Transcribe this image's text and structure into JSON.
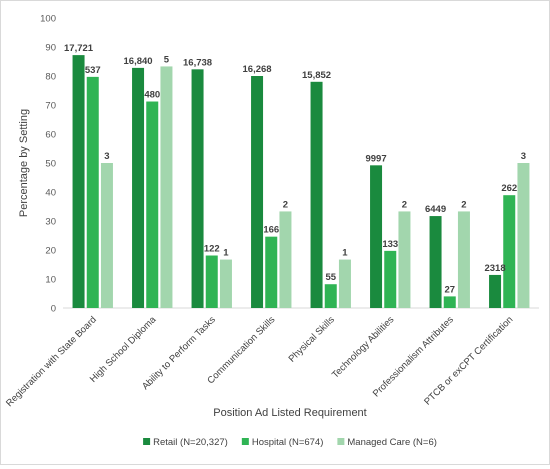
{
  "chart_data": {
    "type": "bar",
    "title": "",
    "xlabel": "Position Ad Listed Requirement",
    "ylabel": "Percentage by Setting",
    "ylim": [
      0,
      100
    ],
    "yticks": [
      0,
      10,
      20,
      30,
      40,
      50,
      60,
      70,
      80,
      90,
      100
    ],
    "grid": false,
    "legend_position": "bottom",
    "categories": [
      "Registration with State Board",
      "High School Diploma",
      "Ability to Perform Tasks",
      "Communication Skills",
      "Physical Skills",
      "Technology Abilities",
      "Professionalism Attributes",
      "PTCB or exCPT Certification"
    ],
    "series": [
      {
        "name": "Retail (N=20,327)",
        "color": "#1a8a3e",
        "values": [
          87.2,
          82.8,
          82.3,
          80.0,
          78.0,
          49.2,
          31.7,
          11.4
        ],
        "labels": [
          "17,721",
          "16,840",
          "16,738",
          "16,268",
          "15,852",
          "9997",
          "6449",
          "2318"
        ]
      },
      {
        "name": "Hospital (N=674)",
        "color": "#2fb454",
        "values": [
          79.7,
          71.2,
          18.1,
          24.6,
          8.2,
          19.7,
          4.0,
          38.9
        ],
        "labels": [
          "537",
          "480",
          "122",
          "166",
          "55",
          "133",
          "27",
          "262"
        ]
      },
      {
        "name": "Managed Care (N=6)",
        "color": "#a2d6ad",
        "values": [
          50.0,
          83.3,
          16.7,
          33.3,
          16.7,
          33.3,
          33.3,
          50.0
        ],
        "labels": [
          "3",
          "5",
          "1",
          "2",
          "1",
          "2",
          "2",
          "3"
        ]
      }
    ]
  }
}
